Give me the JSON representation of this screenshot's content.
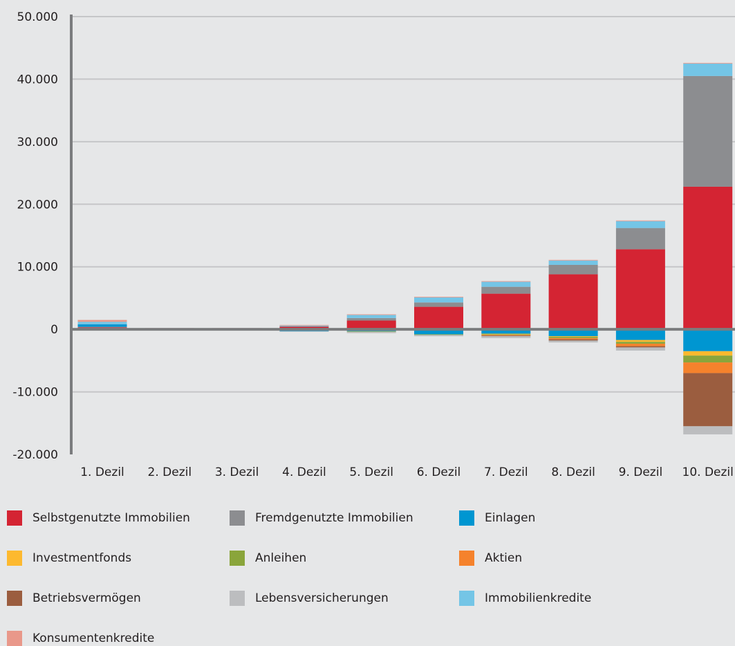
{
  "chart_data": {
    "type": "bar",
    "stacked": true,
    "title": "",
    "xlabel": "",
    "ylabel": "",
    "ylim": [
      -20000,
      50000
    ],
    "yticks": [
      50000,
      40000,
      30000,
      20000,
      10000,
      0,
      -10000,
      -20000
    ],
    "ytick_labels": [
      "50.000",
      "40.000",
      "30.000",
      "20.000",
      "10.000",
      "0",
      "-10.000",
      "-20.000"
    ],
    "grid": true,
    "legend_position": "bottom",
    "categories": [
      "1. Dezil",
      "2. Dezil",
      "3. Dezil",
      "4. Dezil",
      "5. Dezil",
      "6. Dezil",
      "7. Dezil",
      "8. Dezil",
      "9. Dezil",
      "10. Dezil"
    ],
    "series": [
      {
        "name": "Selbstgenutzte Immobilien",
        "color": "#d42433",
        "values": [
          300,
          100,
          100,
          400,
          1400,
          3600,
          5700,
          8800,
          12800,
          22800
        ]
      },
      {
        "name": "Fremdgenutzte Immobilien",
        "color": "#8c8d90",
        "values": [
          100,
          0,
          0,
          100,
          400,
          700,
          1100,
          1500,
          3400,
          17700
        ]
      },
      {
        "name": "Einlagen",
        "color": "#0096d1",
        "values": [
          400,
          -200,
          -200,
          -300,
          -300,
          -800,
          -700,
          -1100,
          -1700,
          -3500
        ]
      },
      {
        "name": "Investmentfonds",
        "color": "#fdb92f",
        "values": [
          0,
          0,
          0,
          0,
          0,
          0,
          -100,
          -100,
          -300,
          -700
        ]
      },
      {
        "name": "Anleihen",
        "color": "#8aa53b",
        "values": [
          0,
          0,
          0,
          0,
          -100,
          -100,
          -100,
          -200,
          -300,
          -1100
        ]
      },
      {
        "name": "Aktien",
        "color": "#f5822c",
        "values": [
          0,
          0,
          0,
          0,
          0,
          0,
          -100,
          -200,
          -400,
          -1700
        ]
      },
      {
        "name": "Betriebsvermögen",
        "color": "#9b5d3f",
        "values": [
          0,
          0,
          0,
          0,
          0,
          0,
          -100,
          -200,
          -200,
          -8500
        ]
      },
      {
        "name": "Lebensversicherungen",
        "color": "#bcbdbf",
        "values": [
          0,
          0,
          0,
          -100,
          -200,
          -200,
          -300,
          -300,
          -500,
          -1300
        ]
      },
      {
        "name": "Immobilienkredite",
        "color": "#74c5e6",
        "values": [
          400,
          0,
          0,
          100,
          500,
          800,
          800,
          700,
          1100,
          2000
        ]
      },
      {
        "name": "Konsumentenkredite",
        "color": "#e9988a",
        "values": [
          300,
          100,
          100,
          100,
          100,
          100,
          100,
          100,
          100,
          100
        ]
      }
    ]
  },
  "colors": {
    "background": "#e6e7e8",
    "axis": "#7b7c7e",
    "grid": "#c5c6c8",
    "text": "#231f20"
  }
}
